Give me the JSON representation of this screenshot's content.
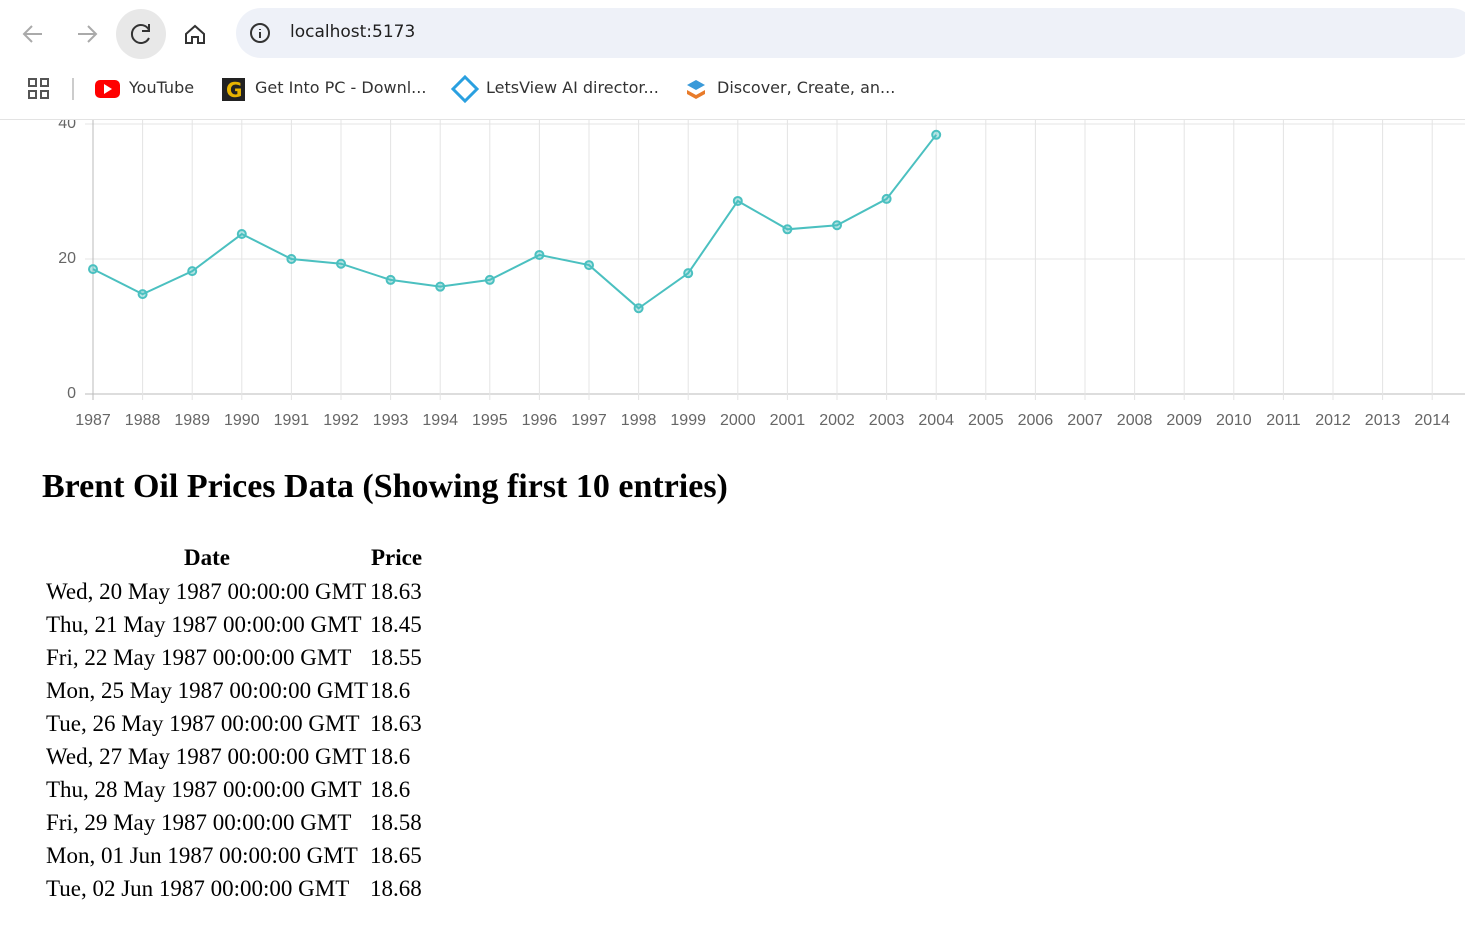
{
  "browser": {
    "url": "localhost:5173",
    "bookmarks": [
      "YouTube",
      "Get Into PC - Downl...",
      "LetsView AI director...",
      "Discover, Create, an..."
    ]
  },
  "chart_data": {
    "type": "line",
    "categories": [
      "1987",
      "1988",
      "1989",
      "1990",
      "1991",
      "1992",
      "1993",
      "1994",
      "1995",
      "1996",
      "1997",
      "1998",
      "1999",
      "2000",
      "2001",
      "2002",
      "2003",
      "2004",
      "2005",
      "2006",
      "2007",
      "2008",
      "2009",
      "2010",
      "2011",
      "2012",
      "2013",
      "2014"
    ],
    "series": [
      {
        "color": "#4bc0c0",
        "values": [
          18.5,
          14.8,
          18.2,
          23.7,
          20.0,
          19.3,
          16.9,
          15.9,
          16.9,
          20.6,
          19.1,
          12.7,
          17.9,
          28.6,
          24.4,
          25.0,
          28.9,
          38.4,
          null,
          null,
          null,
          null,
          null,
          null,
          null,
          null,
          null,
          null
        ]
      }
    ],
    "ylim": [
      0,
      40
    ],
    "yticks": [
      0,
      20,
      40
    ],
    "grid": true
  },
  "heading": "Brent Oil Prices Data (Showing first 10 entries)",
  "table": {
    "headers": [
      "Date",
      "Price"
    ],
    "rows": [
      [
        "Wed, 20 May 1987 00:00:00 GMT",
        "18.63"
      ],
      [
        "Thu, 21 May 1987 00:00:00 GMT",
        "18.45"
      ],
      [
        "Fri, 22 May 1987 00:00:00 GMT",
        "18.55"
      ],
      [
        "Mon, 25 May 1987 00:00:00 GMT",
        "18.6"
      ],
      [
        "Tue, 26 May 1987 00:00:00 GMT",
        "18.63"
      ],
      [
        "Wed, 27 May 1987 00:00:00 GMT",
        "18.6"
      ],
      [
        "Thu, 28 May 1987 00:00:00 GMT",
        "18.6"
      ],
      [
        "Fri, 29 May 1987 00:00:00 GMT",
        "18.58"
      ],
      [
        "Mon, 01 Jun 1987 00:00:00 GMT",
        "18.65"
      ],
      [
        "Tue, 02 Jun 1987 00:00:00 GMT",
        "18.68"
      ]
    ]
  }
}
